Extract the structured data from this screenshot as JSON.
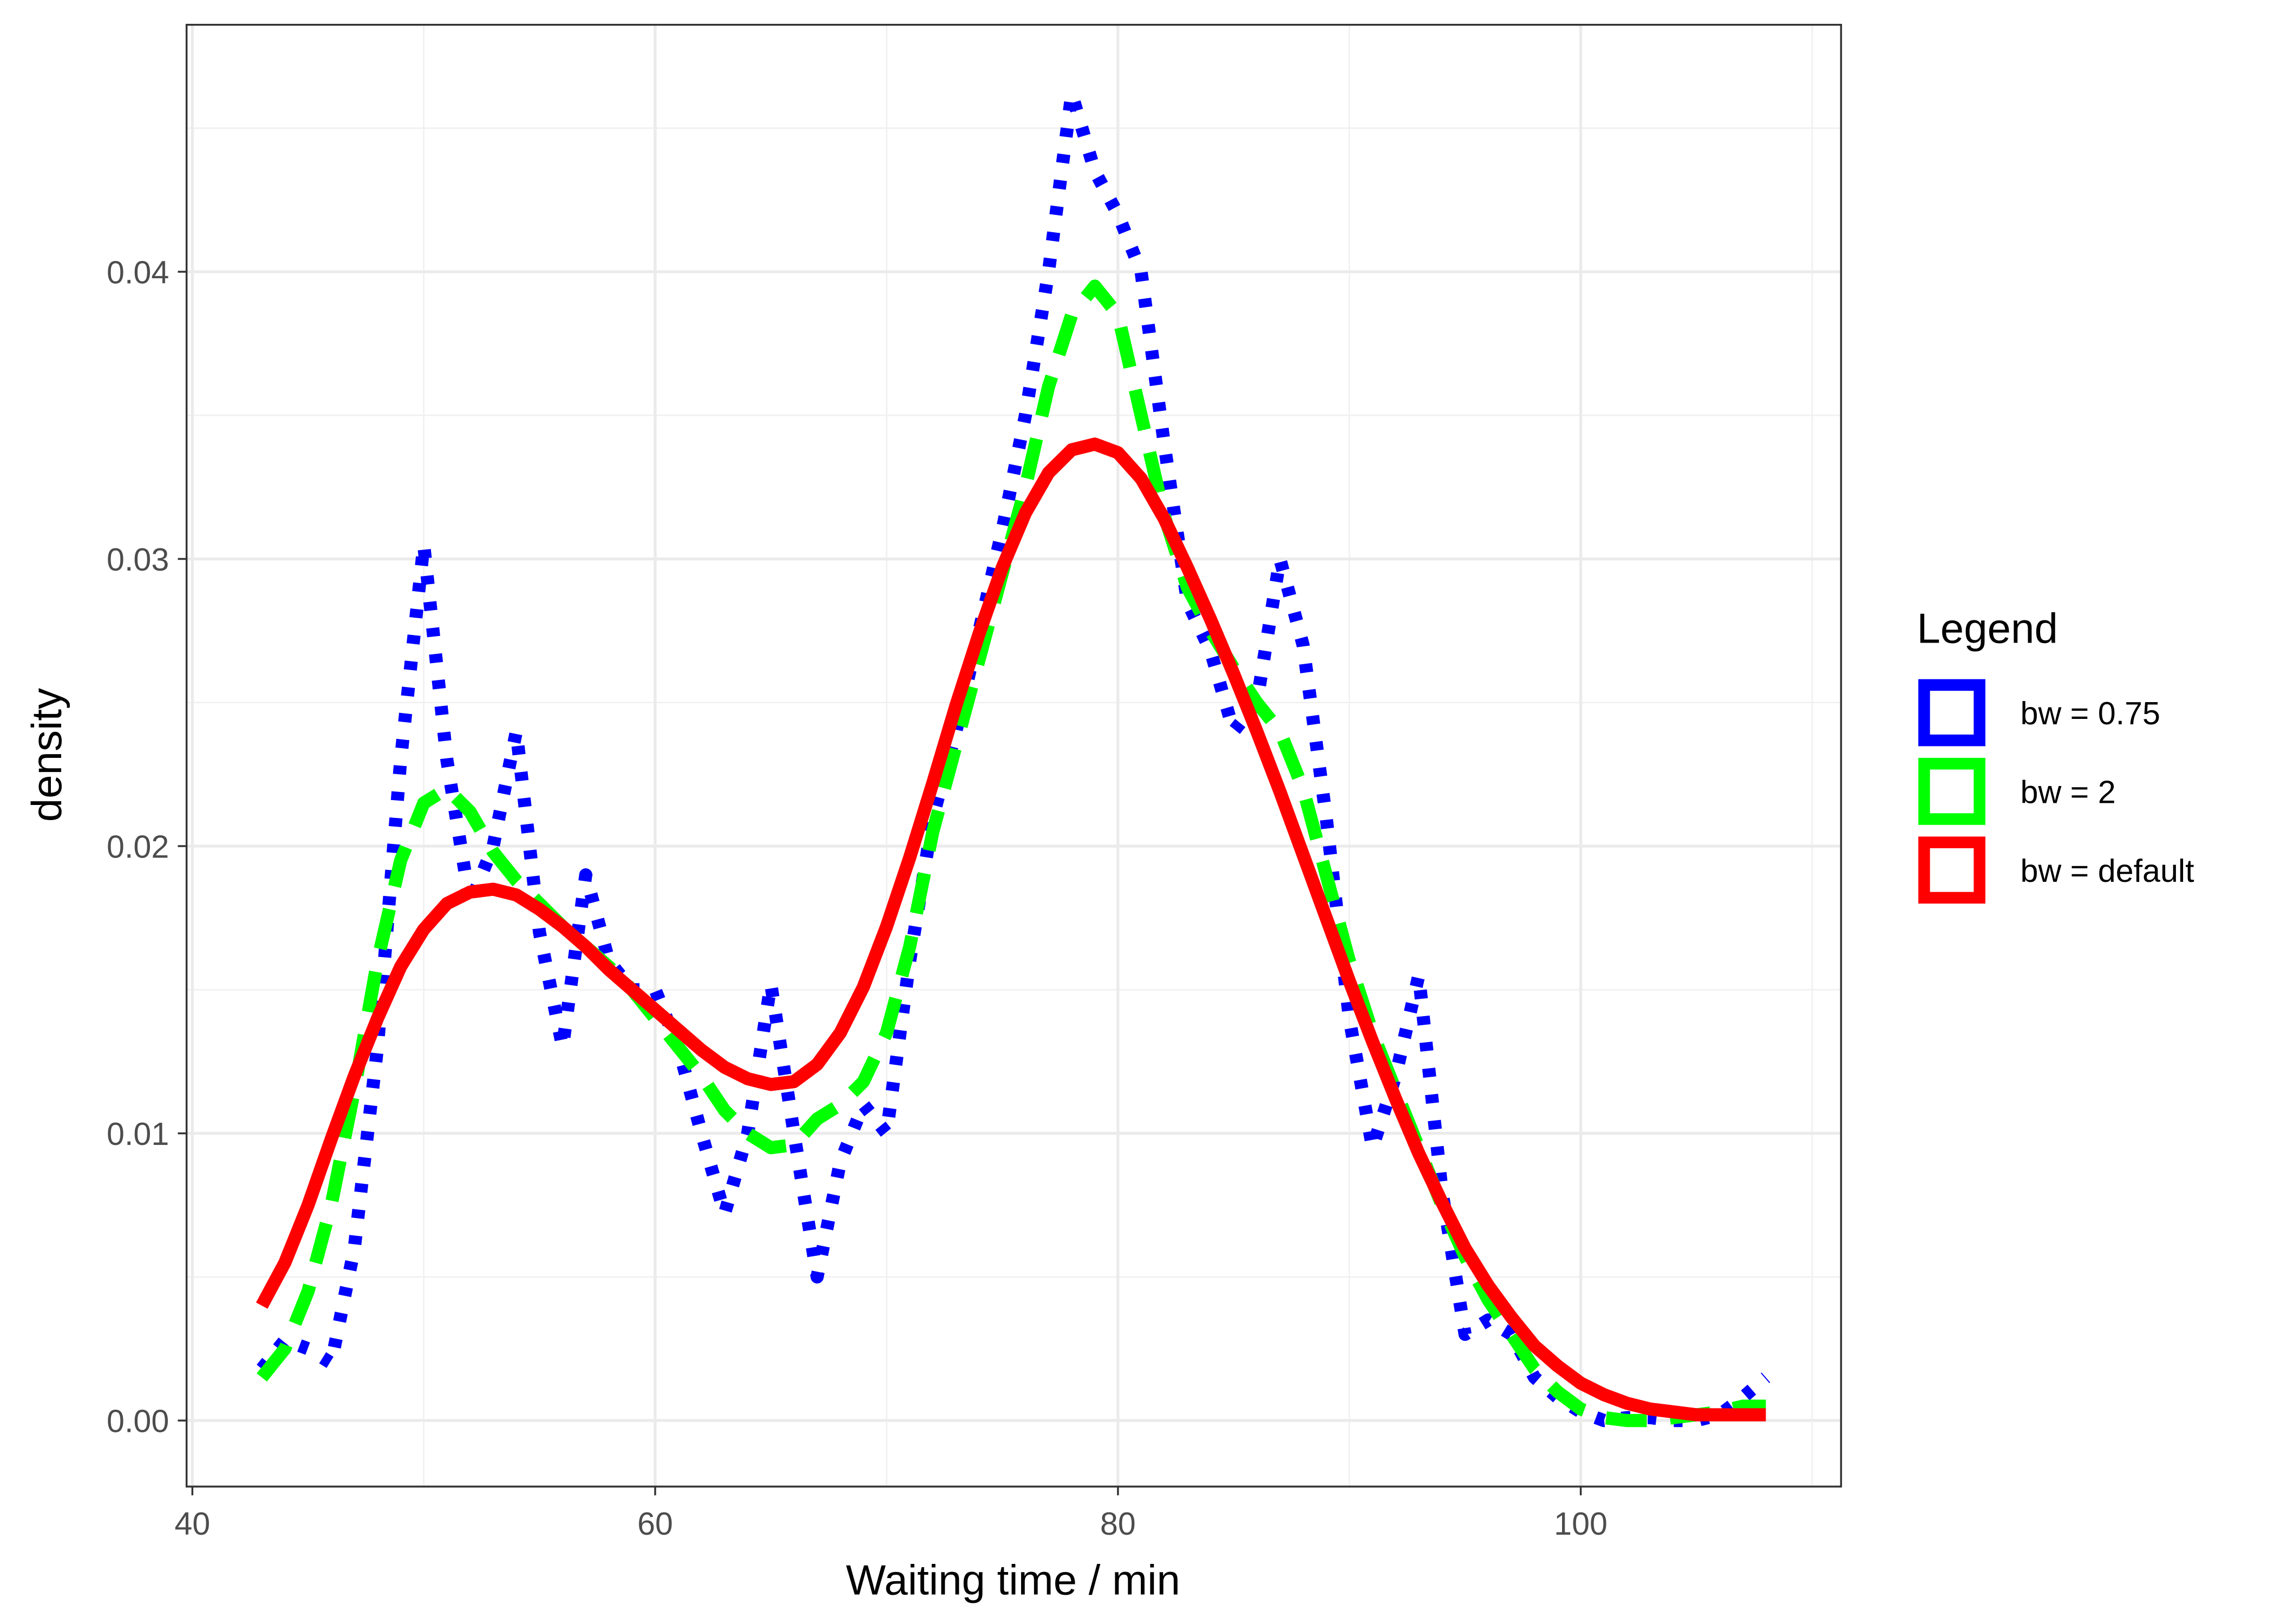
{
  "chart_data": {
    "type": "line",
    "xlabel": "Waiting time / min",
    "ylabel": "density",
    "legend_title": "Legend",
    "legend_position": "right",
    "grid": true,
    "xlim": [
      39.75,
      111.25
    ],
    "ylim": [
      -0.0023,
      0.0486
    ],
    "xticks": [
      40,
      60,
      80,
      100
    ],
    "yticks": [
      {
        "value": 0,
        "label": "0.00"
      },
      {
        "value": 0.01,
        "label": "0.01"
      },
      {
        "value": 0.02,
        "label": "0.02"
      },
      {
        "value": 0.03,
        "label": "0.03"
      },
      {
        "value": 0.04,
        "label": "0.04"
      }
    ],
    "x": [
      43,
      44,
      45,
      46,
      47,
      48,
      49,
      50,
      51,
      52,
      53,
      54,
      55,
      56,
      57,
      58,
      59,
      60,
      61,
      62,
      63,
      64,
      65,
      66,
      67,
      68,
      69,
      70,
      71,
      72,
      73,
      74,
      75,
      76,
      77,
      78,
      79,
      80,
      81,
      82,
      83,
      84,
      85,
      86,
      87,
      88,
      89,
      90,
      91,
      92,
      93,
      94,
      95,
      96,
      97,
      98,
      99,
      100,
      101,
      102,
      103,
      104,
      105,
      106,
      107,
      108
    ],
    "series": [
      {
        "name": "bw = 0.75",
        "color": "#0000ff",
        "linestyle": "dotted",
        "values": [
          0.0018,
          0.0028,
          0.0025,
          0.002,
          0.006,
          0.013,
          0.023,
          0.0305,
          0.023,
          0.018,
          0.02,
          0.024,
          0.017,
          0.013,
          0.019,
          0.016,
          0.015,
          0.015,
          0.013,
          0.01,
          0.0072,
          0.01,
          0.0152,
          0.01,
          0.005,
          0.009,
          0.011,
          0.01,
          0.016,
          0.021,
          0.024,
          0.0275,
          0.031,
          0.035,
          0.04,
          0.0462,
          0.0435,
          0.042,
          0.04,
          0.034,
          0.0285,
          0.0268,
          0.024,
          0.025,
          0.03,
          0.027,
          0.021,
          0.014,
          0.0095,
          0.012,
          0.0155,
          0.008,
          0.003,
          0.0035,
          0.003,
          0.0015,
          0.0008,
          0.0003,
          0.0,
          0.0001,
          0.0001,
          0.0,
          0.0,
          0.0002,
          0.0008,
          0.0015
        ]
      },
      {
        "name": "bw = 2",
        "color": "#00ff00",
        "linestyle": "dashed",
        "values": [
          0.0015,
          0.0025,
          0.0045,
          0.0075,
          0.0115,
          0.016,
          0.0195,
          0.0215,
          0.022,
          0.0212,
          0.0198,
          0.0188,
          0.018,
          0.0172,
          0.0165,
          0.0158,
          0.015,
          0.014,
          0.013,
          0.012,
          0.0108,
          0.01,
          0.0095,
          0.0096,
          0.0105,
          0.011,
          0.0118,
          0.0135,
          0.0165,
          0.0205,
          0.0235,
          0.0265,
          0.0295,
          0.0325,
          0.036,
          0.0385,
          0.0395,
          0.0385,
          0.035,
          0.0315,
          0.029,
          0.0275,
          0.0262,
          0.025,
          0.024,
          0.022,
          0.019,
          0.016,
          0.0135,
          0.0115,
          0.0095,
          0.0075,
          0.0057,
          0.0042,
          0.003,
          0.0018,
          0.001,
          0.0004,
          0.0001,
          0.0,
          0.0,
          0.0001,
          0.0002,
          0.0003,
          0.0005,
          0.0005
        ]
      },
      {
        "name": "bw = default",
        "color": "#ff0000",
        "linestyle": "solid",
        "values": [
          0.004,
          0.0055,
          0.0075,
          0.0098,
          0.012,
          0.014,
          0.0158,
          0.0171,
          0.018,
          0.0184,
          0.0185,
          0.0183,
          0.0178,
          0.0172,
          0.0165,
          0.0157,
          0.015,
          0.0143,
          0.0136,
          0.0129,
          0.0123,
          0.0119,
          0.0117,
          0.0118,
          0.0124,
          0.0135,
          0.0151,
          0.0172,
          0.0196,
          0.0222,
          0.0249,
          0.0274,
          0.0297,
          0.0316,
          0.033,
          0.0338,
          0.034,
          0.0337,
          0.0328,
          0.0314,
          0.0297,
          0.0279,
          0.026,
          0.024,
          0.0219,
          0.0197,
          0.0175,
          0.0153,
          0.0132,
          0.0112,
          0.0093,
          0.0076,
          0.006,
          0.0047,
          0.0036,
          0.0026,
          0.0019,
          0.0013,
          0.0009,
          0.0006,
          0.0004,
          0.0003,
          0.0002,
          0.0002,
          0.0002,
          0.0002
        ]
      }
    ]
  }
}
